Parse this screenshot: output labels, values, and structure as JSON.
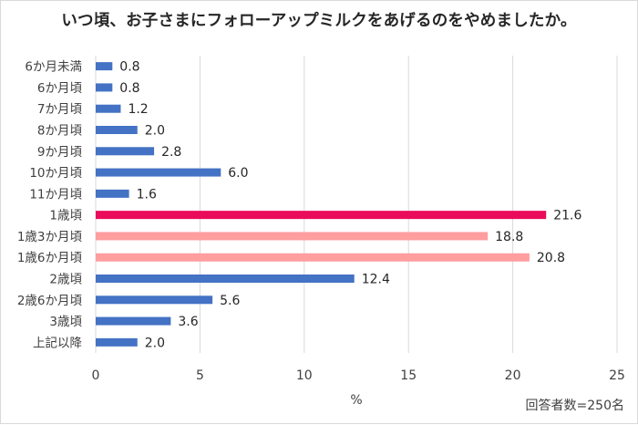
{
  "chart_data": {
    "type": "bar",
    "orientation": "horizontal",
    "title": "いつ頃、お子さまにフォローアップミルクをあげるのをやめましたか。",
    "categories": [
      "6か月未満",
      "6か月頃",
      "7か月頃",
      "8か月頃",
      "9か月頃",
      "10か月頃",
      "11か月頃",
      "1歳頃",
      "1歳3か月頃",
      "1歳6か月頃",
      "2歳頃",
      "2歳6か月頃",
      "3歳頃",
      "上記以降"
    ],
    "values": [
      0.8,
      0.8,
      1.2,
      2.0,
      2.8,
      6.0,
      1.6,
      21.6,
      18.8,
      20.8,
      12.4,
      5.6,
      3.6,
      2.0
    ],
    "value_labels": [
      "0.8",
      "0.8",
      "1.2",
      "2.0",
      "2.8",
      "6.0",
      "1.6",
      "21.6",
      "18.8",
      "20.8",
      "12.4",
      "5.6",
      "3.6",
      "2.0"
    ],
    "bar_colors": [
      "#4472c4",
      "#4472c4",
      "#4472c4",
      "#4472c4",
      "#4472c4",
      "#4472c4",
      "#4472c4",
      "#ea0b5a",
      "#ff9d9f",
      "#ff9d9f",
      "#4472c4",
      "#4472c4",
      "#4472c4",
      "#4472c4"
    ],
    "xlabel": "%",
    "ylabel": "",
    "xlim": [
      0,
      25
    ],
    "xticks": [
      "0",
      "5",
      "10",
      "15",
      "20",
      "25"
    ],
    "grid": true
  },
  "footnote": "回答者数=250名"
}
